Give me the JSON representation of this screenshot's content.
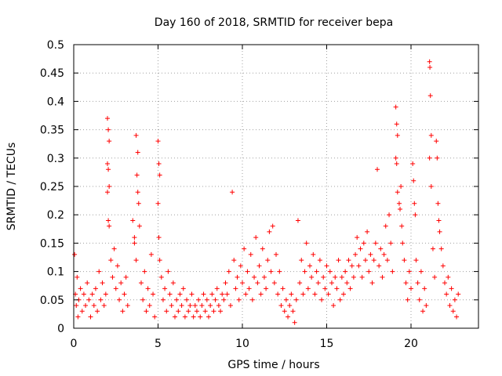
{
  "chart_data": {
    "type": "scatter",
    "title": "Day 160 of 2018, SRMTID for receiver bepa",
    "xlabel": "GPS time / hours",
    "ylabel": "SRMTID / TECUs",
    "xlim": [
      0,
      24
    ],
    "ylim": [
      0,
      0.5
    ],
    "x_ticks": [
      0,
      5,
      10,
      15,
      20
    ],
    "x_tick_labels": [
      "0",
      "5",
      "10",
      "15",
      "20"
    ],
    "y_ticks": [
      0,
      0.05,
      0.1,
      0.15,
      0.2,
      0.25,
      0.3,
      0.35,
      0.4,
      0.45,
      0.5
    ],
    "y_tick_labels": [
      "0",
      "0.05",
      "0.1",
      "0.15",
      "0.2",
      "0.25",
      "0.3",
      "0.35",
      "0.4",
      "0.45",
      "0.5"
    ],
    "grid": true,
    "marker": "+",
    "color": "#ff0000",
    "series": [
      {
        "name": "SRMTID",
        "points": [
          [
            0.05,
            0.13
          ],
          [
            0.1,
            0.06
          ],
          [
            0.15,
            0.04
          ],
          [
            0.2,
            0.09
          ],
          [
            0.25,
            0.02
          ],
          [
            0.3,
            0.05
          ],
          [
            0.4,
            0.07
          ],
          [
            0.5,
            0.03
          ],
          [
            0.6,
            0.06
          ],
          [
            0.7,
            0.04
          ],
          [
            0.8,
            0.08
          ],
          [
            0.9,
            0.05
          ],
          [
            1.0,
            0.02
          ],
          [
            1.1,
            0.06
          ],
          [
            1.2,
            0.04
          ],
          [
            1.3,
            0.07
          ],
          [
            1.4,
            0.03
          ],
          [
            1.5,
            0.1
          ],
          [
            1.6,
            0.05
          ],
          [
            1.7,
            0.08
          ],
          [
            1.8,
            0.04
          ],
          [
            1.9,
            0.06
          ],
          [
            2.0,
            0.37
          ],
          [
            2.05,
            0.35
          ],
          [
            2.1,
            0.33
          ],
          [
            2.0,
            0.29
          ],
          [
            2.05,
            0.28
          ],
          [
            2.1,
            0.25
          ],
          [
            2.0,
            0.24
          ],
          [
            2.05,
            0.19
          ],
          [
            2.1,
            0.18
          ],
          [
            2.2,
            0.12
          ],
          [
            2.3,
            0.09
          ],
          [
            2.4,
            0.14
          ],
          [
            2.5,
            0.07
          ],
          [
            2.6,
            0.11
          ],
          [
            2.7,
            0.05
          ],
          [
            2.8,
            0.08
          ],
          [
            2.9,
            0.03
          ],
          [
            3.0,
            0.06
          ],
          [
            3.1,
            0.09
          ],
          [
            3.2,
            0.04
          ],
          [
            3.5,
            0.19
          ],
          [
            3.6,
            0.16
          ],
          [
            3.7,
            0.34
          ],
          [
            3.8,
            0.31
          ],
          [
            3.75,
            0.27
          ],
          [
            3.8,
            0.24
          ],
          [
            3.85,
            0.22
          ],
          [
            3.9,
            0.18
          ],
          [
            3.6,
            0.15
          ],
          [
            3.7,
            0.12
          ],
          [
            4.0,
            0.08
          ],
          [
            4.1,
            0.05
          ],
          [
            4.2,
            0.1
          ],
          [
            4.3,
            0.03
          ],
          [
            4.4,
            0.07
          ],
          [
            4.5,
            0.04
          ],
          [
            4.6,
            0.13
          ],
          [
            4.7,
            0.06
          ],
          [
            4.8,
            0.02
          ],
          [
            5.0,
            0.33
          ],
          [
            5.05,
            0.29
          ],
          [
            5.1,
            0.27
          ],
          [
            5.0,
            0.22
          ],
          [
            5.05,
            0.16
          ],
          [
            5.1,
            0.12
          ],
          [
            5.2,
            0.09
          ],
          [
            5.3,
            0.05
          ],
          [
            5.4,
            0.07
          ],
          [
            5.5,
            0.03
          ],
          [
            5.6,
            0.1
          ],
          [
            5.7,
            0.06
          ],
          [
            5.8,
            0.04
          ],
          [
            5.9,
            0.08
          ],
          [
            6.0,
            0.02
          ],
          [
            6.1,
            0.05
          ],
          [
            6.2,
            0.03
          ],
          [
            6.3,
            0.06
          ],
          [
            6.4,
            0.04
          ],
          [
            6.5,
            0.07
          ],
          [
            6.6,
            0.02
          ],
          [
            6.7,
            0.05
          ],
          [
            6.8,
            0.03
          ],
          [
            6.9,
            0.04
          ],
          [
            7.0,
            0.06
          ],
          [
            7.1,
            0.02
          ],
          [
            7.2,
            0.04
          ],
          [
            7.3,
            0.03
          ],
          [
            7.4,
            0.05
          ],
          [
            7.5,
            0.02
          ],
          [
            7.6,
            0.04
          ],
          [
            7.7,
            0.06
          ],
          [
            7.8,
            0.03
          ],
          [
            7.9,
            0.05
          ],
          [
            8.0,
            0.02
          ],
          [
            8.1,
            0.04
          ],
          [
            8.2,
            0.06
          ],
          [
            8.3,
            0.03
          ],
          [
            8.4,
            0.05
          ],
          [
            8.5,
            0.07
          ],
          [
            8.6,
            0.04
          ],
          [
            8.7,
            0.03
          ],
          [
            8.8,
            0.06
          ],
          [
            8.9,
            0.05
          ],
          [
            9.0,
            0.08
          ],
          [
            9.1,
            0.06
          ],
          [
            9.2,
            0.1
          ],
          [
            9.3,
            0.04
          ],
          [
            9.4,
            0.24
          ],
          [
            9.5,
            0.12
          ],
          [
            9.6,
            0.07
          ],
          [
            9.7,
            0.09
          ],
          [
            9.8,
            0.05
          ],
          [
            9.9,
            0.11
          ],
          [
            10.0,
            0.08
          ],
          [
            10.1,
            0.14
          ],
          [
            10.2,
            0.06
          ],
          [
            10.3,
            0.1
          ],
          [
            10.4,
            0.07
          ],
          [
            10.5,
            0.13
          ],
          [
            10.6,
            0.05
          ],
          [
            10.7,
            0.09
          ],
          [
            10.8,
            0.16
          ],
          [
            10.9,
            0.08
          ],
          [
            11.0,
            0.11
          ],
          [
            11.1,
            0.06
          ],
          [
            11.2,
            0.14
          ],
          [
            11.3,
            0.09
          ],
          [
            11.4,
            0.07
          ],
          [
            11.5,
            0.12
          ],
          [
            11.6,
            0.17
          ],
          [
            11.7,
            0.1
          ],
          [
            11.8,
            0.18
          ],
          [
            11.9,
            0.08
          ],
          [
            12.0,
            0.13
          ],
          [
            12.1,
            0.06
          ],
          [
            12.2,
            0.1
          ],
          [
            12.3,
            0.04
          ],
          [
            12.4,
            0.07
          ],
          [
            12.5,
            0.03
          ],
          [
            12.6,
            0.05
          ],
          [
            12.7,
            0.02
          ],
          [
            12.8,
            0.04
          ],
          [
            12.9,
            0.06
          ],
          [
            13.0,
            0.03
          ],
          [
            13.1,
            0.01
          ],
          [
            13.2,
            0.05
          ],
          [
            13.3,
            0.19
          ],
          [
            13.4,
            0.08
          ],
          [
            13.5,
            0.12
          ],
          [
            13.6,
            0.06
          ],
          [
            13.7,
            0.1
          ],
          [
            13.8,
            0.15
          ],
          [
            13.9,
            0.07
          ],
          [
            14.0,
            0.11
          ],
          [
            14.1,
            0.09
          ],
          [
            14.2,
            0.13
          ],
          [
            14.3,
            0.06
          ],
          [
            14.4,
            0.1
          ],
          [
            14.5,
            0.08
          ],
          [
            14.6,
            0.12
          ],
          [
            14.7,
            0.05
          ],
          [
            14.8,
            0.09
          ],
          [
            14.9,
            0.07
          ],
          [
            15.0,
            0.11
          ],
          [
            15.1,
            0.06
          ],
          [
            15.2,
            0.1
          ],
          [
            15.3,
            0.08
          ],
          [
            15.4,
            0.04
          ],
          [
            15.5,
            0.09
          ],
          [
            15.6,
            0.07
          ],
          [
            15.7,
            0.12
          ],
          [
            15.8,
            0.05
          ],
          [
            15.9,
            0.09
          ],
          [
            16.0,
            0.06
          ],
          [
            16.1,
            0.1
          ],
          [
            16.2,
            0.08
          ],
          [
            16.3,
            0.12
          ],
          [
            16.4,
            0.07
          ],
          [
            16.5,
            0.11
          ],
          [
            16.6,
            0.09
          ],
          [
            16.7,
            0.13
          ],
          [
            16.8,
            0.16
          ],
          [
            16.9,
            0.11
          ],
          [
            17.0,
            0.14
          ],
          [
            17.1,
            0.09
          ],
          [
            17.2,
            0.15
          ],
          [
            17.3,
            0.12
          ],
          [
            17.4,
            0.17
          ],
          [
            17.5,
            0.1
          ],
          [
            17.6,
            0.13
          ],
          [
            17.7,
            0.08
          ],
          [
            17.8,
            0.12
          ],
          [
            17.9,
            0.15
          ],
          [
            18.0,
            0.28
          ],
          [
            18.1,
            0.11
          ],
          [
            18.2,
            0.14
          ],
          [
            18.3,
            0.09
          ],
          [
            18.4,
            0.13
          ],
          [
            18.5,
            0.18
          ],
          [
            18.6,
            0.12
          ],
          [
            18.7,
            0.2
          ],
          [
            18.8,
            0.15
          ],
          [
            18.9,
            0.1
          ],
          [
            19.1,
            0.39
          ],
          [
            19.15,
            0.36
          ],
          [
            19.2,
            0.34
          ],
          [
            19.1,
            0.3
          ],
          [
            19.15,
            0.29
          ],
          [
            19.2,
            0.24
          ],
          [
            19.3,
            0.22
          ],
          [
            19.35,
            0.21
          ],
          [
            19.4,
            0.25
          ],
          [
            19.45,
            0.18
          ],
          [
            19.5,
            0.15
          ],
          [
            19.6,
            0.12
          ],
          [
            19.7,
            0.08
          ],
          [
            19.8,
            0.05
          ],
          [
            19.9,
            0.1
          ],
          [
            20.0,
            0.07
          ],
          [
            20.1,
            0.29
          ],
          [
            20.15,
            0.26
          ],
          [
            20.2,
            0.22
          ],
          [
            20.25,
            0.2
          ],
          [
            20.3,
            0.12
          ],
          [
            20.4,
            0.08
          ],
          [
            20.5,
            0.05
          ],
          [
            20.6,
            0.1
          ],
          [
            20.7,
            0.03
          ],
          [
            20.8,
            0.07
          ],
          [
            20.9,
            0.04
          ],
          [
            21.1,
            0.47
          ],
          [
            21.12,
            0.46
          ],
          [
            21.15,
            0.41
          ],
          [
            21.2,
            0.34
          ],
          [
            21.1,
            0.3
          ],
          [
            21.2,
            0.25
          ],
          [
            21.3,
            0.14
          ],
          [
            21.4,
            0.09
          ],
          [
            21.5,
            0.33
          ],
          [
            21.55,
            0.3
          ],
          [
            21.6,
            0.22
          ],
          [
            21.65,
            0.19
          ],
          [
            21.7,
            0.17
          ],
          [
            21.8,
            0.14
          ],
          [
            21.9,
            0.11
          ],
          [
            22.0,
            0.08
          ],
          [
            22.1,
            0.06
          ],
          [
            22.2,
            0.09
          ],
          [
            22.3,
            0.04
          ],
          [
            22.4,
            0.07
          ],
          [
            22.5,
            0.03
          ],
          [
            22.6,
            0.05
          ],
          [
            22.7,
            0.02
          ],
          [
            22.8,
            0.06
          ]
        ]
      }
    ]
  }
}
